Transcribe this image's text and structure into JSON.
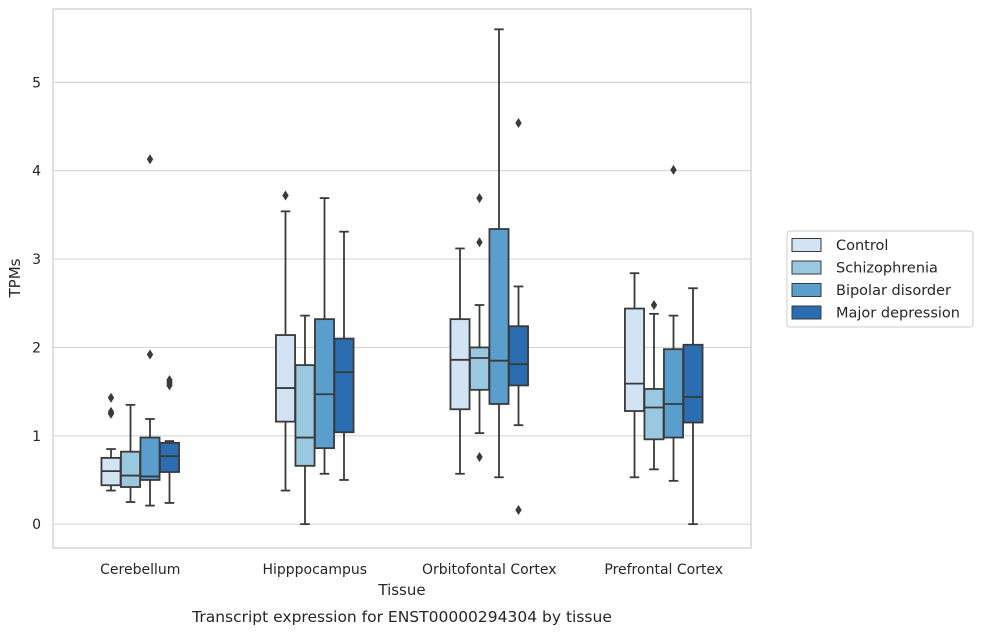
{
  "chart_data": {
    "type": "box",
    "title": "",
    "caption": "Transcript expression for ENST00000294304 by tissue",
    "xlabel": "Tissue",
    "ylabel": "TPMs",
    "ylim": [
      -0.27,
      5.83
    ],
    "yticks": [
      0,
      1,
      2,
      3,
      4,
      5
    ],
    "grid": "horizontal",
    "legend_position": "right",
    "categories": [
      "Cerebellum",
      "Hipppocampus",
      "Orbitofontal Cortex",
      "Prefrontal Cortex"
    ],
    "series": [
      {
        "name": "Control",
        "color": "#d2e3f3",
        "boxes": [
          {
            "whislo": 0.38,
            "q1": 0.44,
            "med": 0.6,
            "q3": 0.75,
            "whishi": 0.85,
            "fliers": [
              1.25,
              1.27,
              1.43
            ]
          },
          {
            "whislo": 0.38,
            "q1": 1.16,
            "med": 1.54,
            "q3": 2.14,
            "whishi": 3.54,
            "fliers": [
              3.72
            ]
          },
          {
            "whislo": 0.57,
            "q1": 1.3,
            "med": 1.86,
            "q3": 2.32,
            "whishi": 3.12,
            "fliers": []
          },
          {
            "whislo": 0.53,
            "q1": 1.28,
            "med": 1.59,
            "q3": 2.44,
            "whishi": 2.84,
            "fliers": []
          }
        ]
      },
      {
        "name": "Schizophrenia",
        "color": "#9ac8e0",
        "boxes": [
          {
            "whislo": 0.25,
            "q1": 0.42,
            "med": 0.55,
            "q3": 0.82,
            "whishi": 1.35,
            "fliers": []
          },
          {
            "whislo": 0.0,
            "q1": 0.66,
            "med": 0.98,
            "q3": 1.8,
            "whishi": 2.36,
            "fliers": []
          },
          {
            "whislo": 1.03,
            "q1": 1.52,
            "med": 1.88,
            "q3": 2.0,
            "whishi": 2.48,
            "fliers": [
              0.76,
              3.19,
              3.69
            ]
          },
          {
            "whislo": 0.62,
            "q1": 0.96,
            "med": 1.32,
            "q3": 1.53,
            "whishi": 2.38,
            "fliers": [
              2.48
            ]
          }
        ]
      },
      {
        "name": "Bipolar disorder",
        "color": "#5a9ecd",
        "boxes": [
          {
            "whislo": 0.21,
            "q1": 0.5,
            "med": 0.54,
            "q3": 0.98,
            "whishi": 1.19,
            "fliers": [
              1.92,
              4.13
            ]
          },
          {
            "whislo": 0.57,
            "q1": 0.86,
            "med": 1.47,
            "q3": 2.32,
            "whishi": 3.69,
            "fliers": []
          },
          {
            "whislo": 0.53,
            "q1": 1.36,
            "med": 1.85,
            "q3": 3.34,
            "whishi": 5.6,
            "fliers": []
          },
          {
            "whislo": 0.49,
            "q1": 0.98,
            "med": 1.36,
            "q3": 1.98,
            "whishi": 2.36,
            "fliers": [
              4.01
            ]
          }
        ]
      },
      {
        "name": "Major depression",
        "color": "#2a6db0",
        "boxes": [
          {
            "whislo": 0.24,
            "q1": 0.59,
            "med": 0.77,
            "q3": 0.92,
            "whishi": 0.94,
            "fliers": [
              1.57,
              1.6,
              1.63
            ]
          },
          {
            "whislo": 0.5,
            "q1": 1.04,
            "med": 1.72,
            "q3": 2.1,
            "whishi": 3.31,
            "fliers": []
          },
          {
            "whislo": 1.12,
            "q1": 1.57,
            "med": 1.81,
            "q3": 2.24,
            "whishi": 2.69,
            "fliers": [
              0.16,
              4.54
            ]
          },
          {
            "whislo": 0.0,
            "q1": 1.15,
            "med": 1.44,
            "q3": 2.03,
            "whishi": 2.67,
            "fliers": []
          }
        ]
      }
    ]
  }
}
